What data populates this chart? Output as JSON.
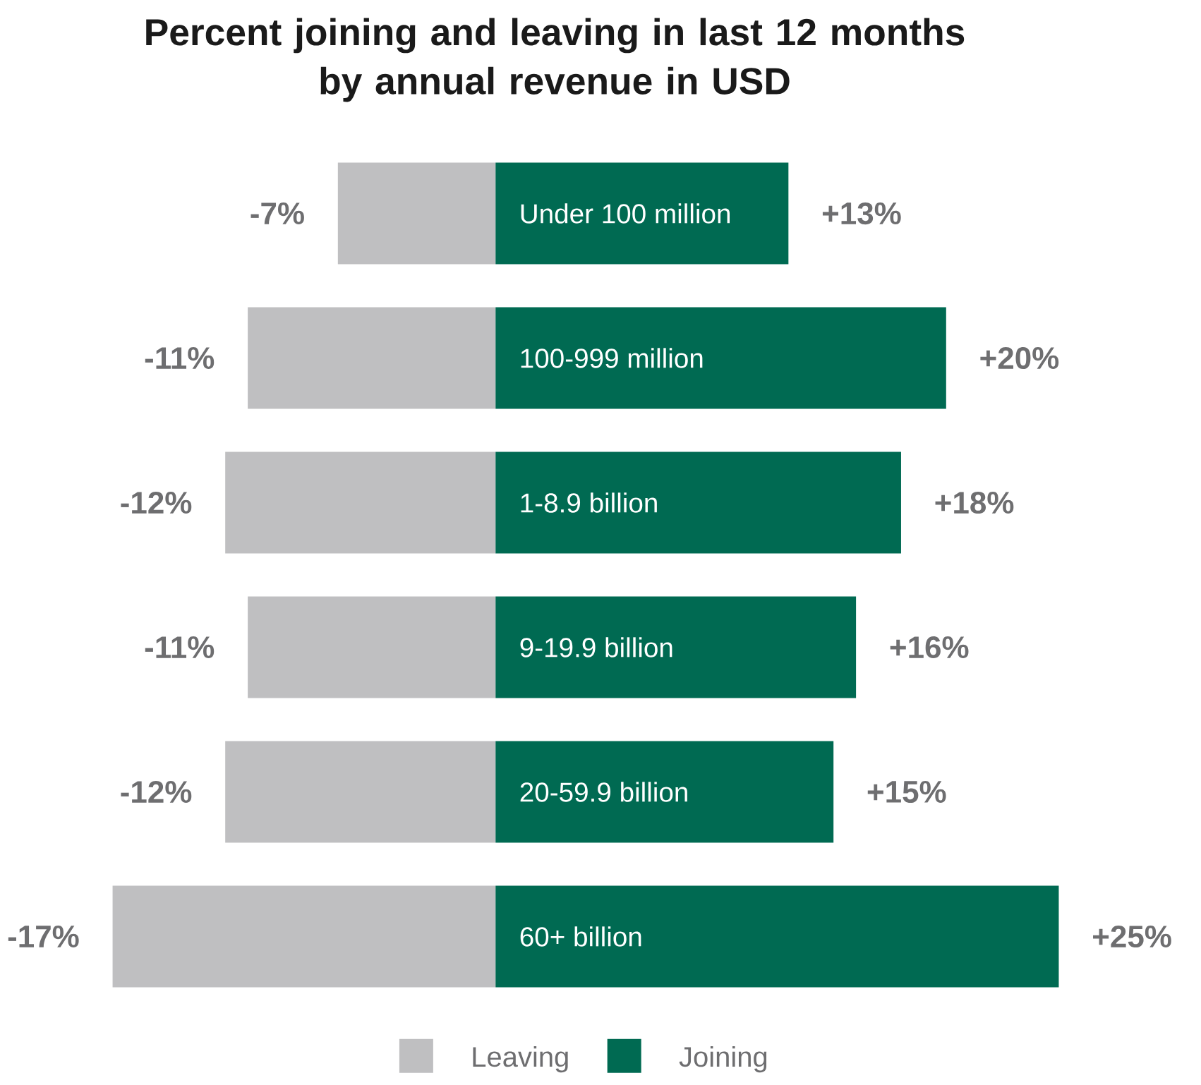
{
  "chart_data": {
    "type": "bar",
    "orientation": "horizontal",
    "title": "Percent joining and leaving in last 12 months\nby annual revenue in USD",
    "categories": [
      "Under 100 million",
      "100-999 million",
      "1-8.9 billion",
      "9-19.9 billion",
      "20-59.9 billion",
      "60+ billion"
    ],
    "series": [
      {
        "name": "Leaving",
        "color": "#bfbfc1",
        "values": [
          -7,
          -11,
          -12,
          -11,
          -12,
          -17
        ],
        "value_labels": [
          "-7%",
          "-11%",
          "-12%",
          "-11%",
          "-12%",
          "-17%"
        ]
      },
      {
        "name": "Joining",
        "color": "#006a52",
        "values": [
          13,
          20,
          18,
          16,
          15,
          25
        ],
        "value_labels": [
          "+13%",
          "+20%",
          "+18%",
          "+16%",
          "+15%",
          "+25%"
        ]
      }
    ],
    "stacked": true,
    "tick_labels": "y",
    "legend": "bottom"
  }
}
